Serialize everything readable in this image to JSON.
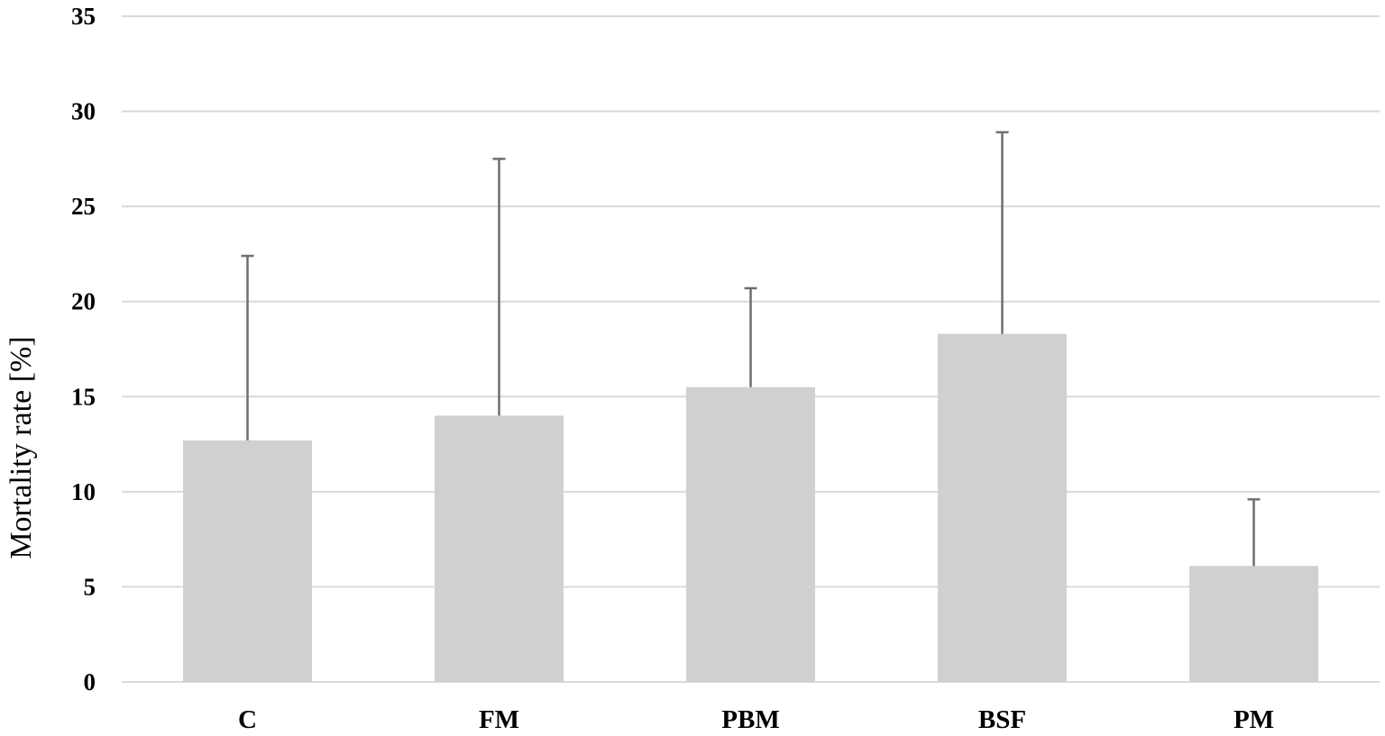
{
  "chart_data": {
    "type": "bar",
    "title": "",
    "xlabel": "",
    "ylabel": "Mortality rate [%]",
    "ylim": [
      0,
      35
    ],
    "yticks": [
      0,
      5,
      10,
      15,
      20,
      25,
      30,
      35
    ],
    "grid": true,
    "legend": "none",
    "categories": [
      "C",
      "FM",
      "PBM",
      "BSF",
      "PM"
    ],
    "values": [
      12.7,
      14.0,
      15.5,
      18.3,
      6.1
    ],
    "error_upper": [
      9.7,
      13.5,
      5.2,
      10.6,
      3.5
    ],
    "colors": {
      "bar": "#d0d0d0",
      "error": "#6f6f6f",
      "grid": "#d9d9d9"
    }
  }
}
